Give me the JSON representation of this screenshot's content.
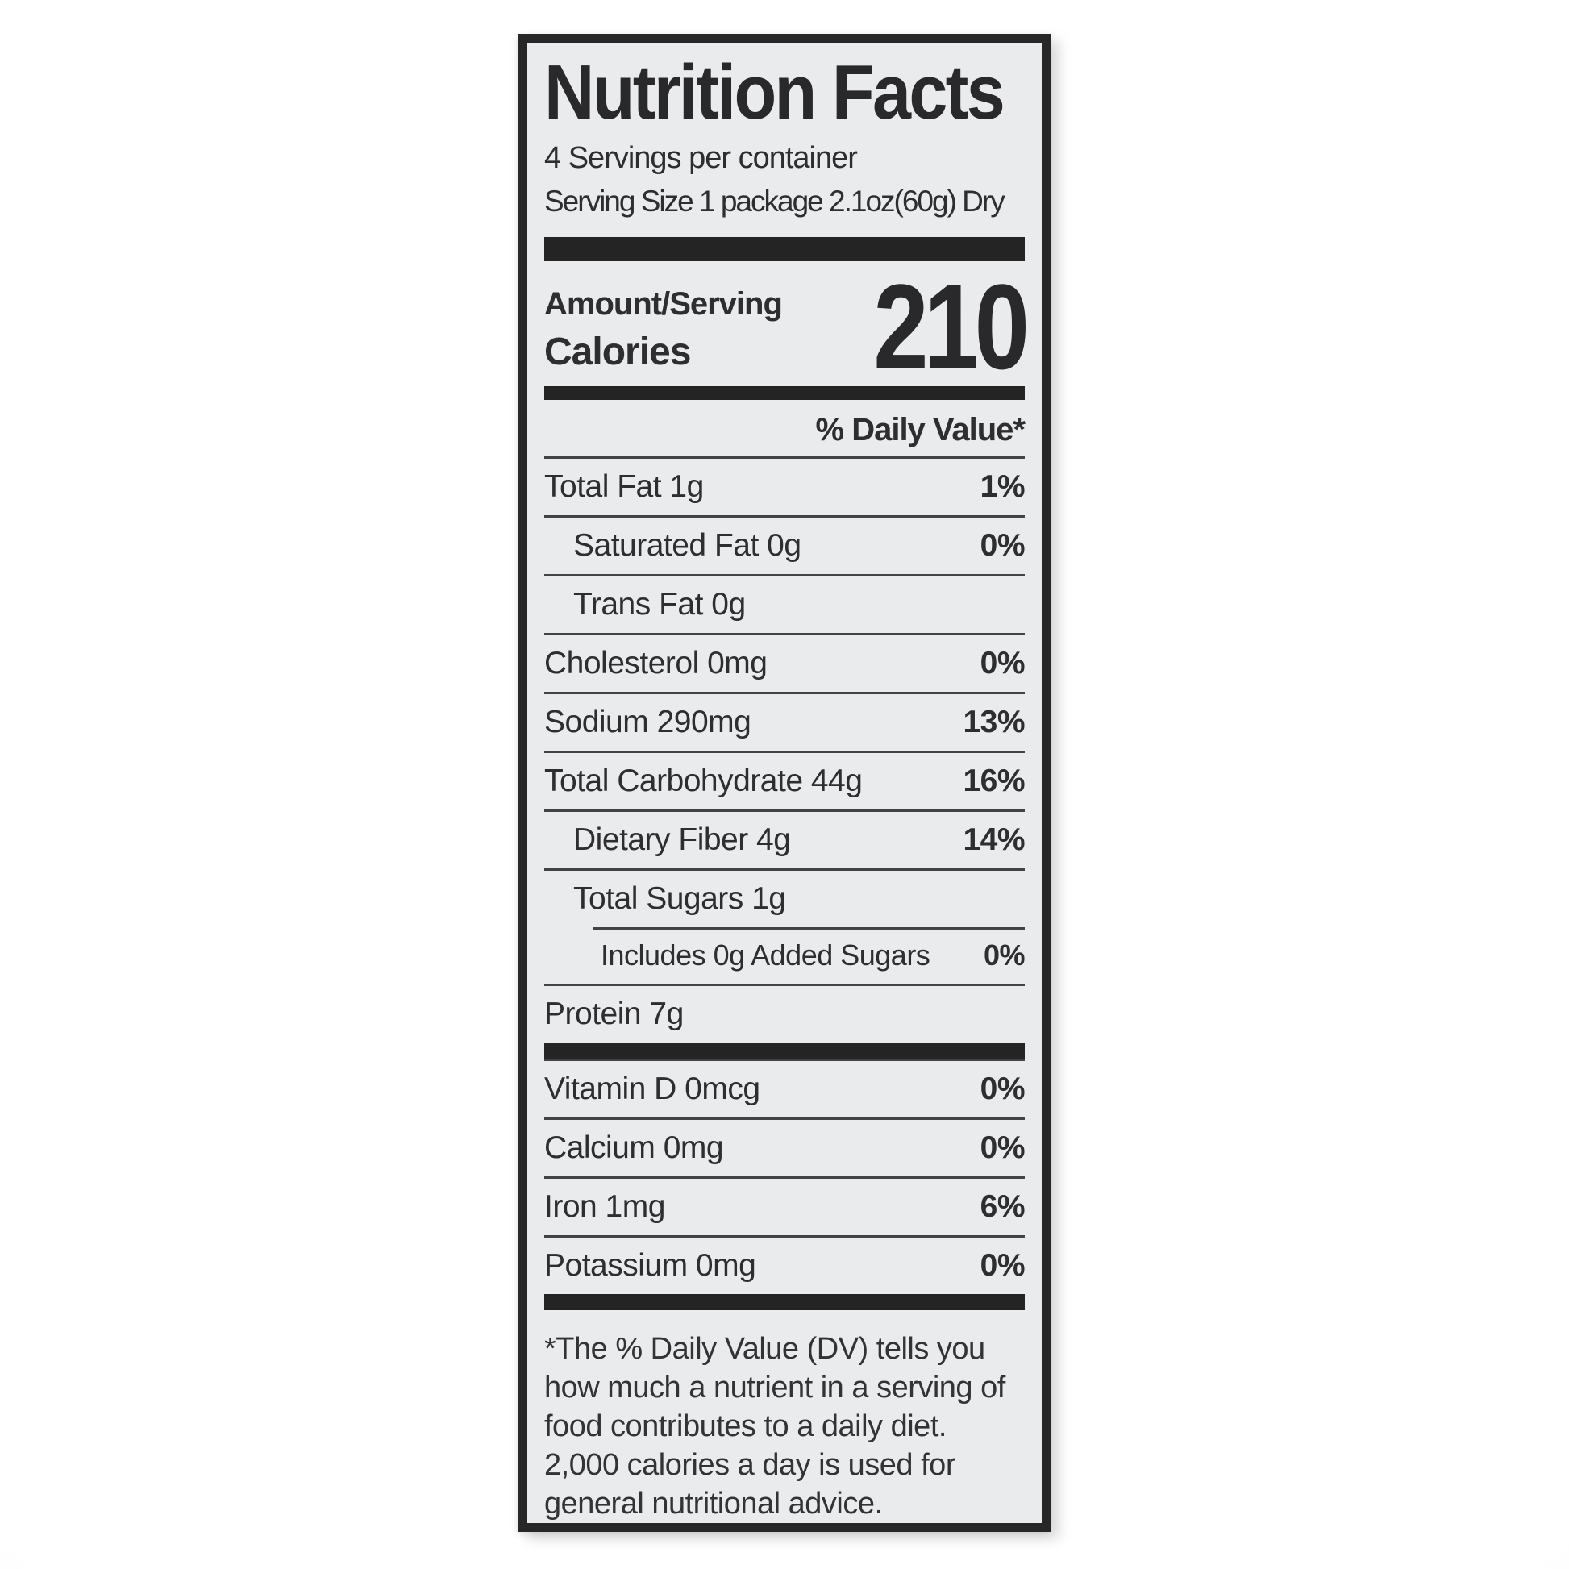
{
  "label": {
    "title": "Nutrition Facts",
    "servings_per_container": "4 Servings per container",
    "serving_size": "Serving Size 1 package 2.1oz(60g) Dry",
    "amount_serving_label": "Amount/Serving",
    "calories_label": "Calories",
    "calories_value": "210",
    "daily_value_header": "% Daily Value*",
    "nutrients": [
      {
        "name": "Total Fat 1g",
        "dv": "1%",
        "indent": 0
      },
      {
        "name": "Saturated Fat 0g",
        "dv": "0%",
        "indent": 1
      },
      {
        "name": "Trans Fat 0g",
        "dv": "",
        "indent": 1
      },
      {
        "name": "Cholesterol 0mg",
        "dv": "0%",
        "indent": 0
      },
      {
        "name": "Sodium 290mg",
        "dv": "13%",
        "indent": 0
      },
      {
        "name": "Total Carbohydrate 44g",
        "dv": "16%",
        "indent": 0
      },
      {
        "name": "Dietary Fiber 4g",
        "dv": "14%",
        "indent": 1
      },
      {
        "name": "Total Sugars 1g",
        "dv": "",
        "indent": 1
      },
      {
        "name": "Includes 0g Added Sugars",
        "dv": "0%",
        "indent": 2,
        "divider": "indent"
      },
      {
        "name": "Protein 7g",
        "dv": "",
        "indent": 0
      }
    ],
    "micronutrients": [
      {
        "name": "Vitamin D 0mcg",
        "dv": "0%"
      },
      {
        "name": "Calcium 0mg",
        "dv": "0%"
      },
      {
        "name": "Iron 1mg",
        "dv": "6%"
      },
      {
        "name": "Potassium 0mg",
        "dv": "0%"
      }
    ],
    "footnote": "*The % Daily Value (DV) tells you how much a nutrient in a serving of food contributes to a daily diet. 2,000 calories a day is used for general nutritional advice."
  },
  "colors": {
    "label_bg": "#e9ebed",
    "ink": "#2e2e31",
    "bar": "#242424",
    "divider": "#434345",
    "page_bg": "#ffffff"
  }
}
